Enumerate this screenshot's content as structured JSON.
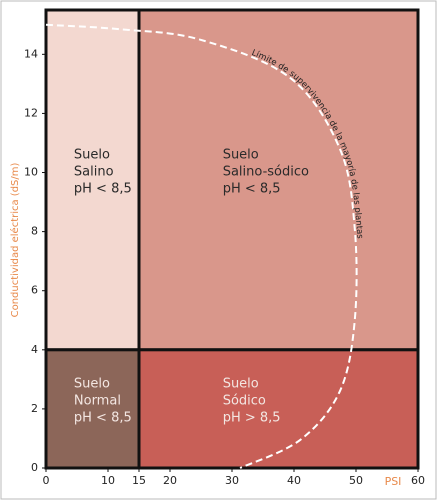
{
  "chart_data": {
    "type": "regions",
    "x_label": "PSI",
    "y_label": "Conductividad eléctrica (dS/m)",
    "xlim": [
      0,
      60
    ],
    "ylim": [
      0,
      15.5
    ],
    "xticks": [
      0,
      10,
      15,
      20,
      30,
      40,
      50,
      60
    ],
    "yticks": [
      0,
      2,
      4,
      6,
      8,
      10,
      12,
      14
    ],
    "regions": [
      {
        "lines": [
          "Suelo",
          "Salino",
          "pH < 8,5"
        ],
        "x0": 0,
        "x1": 15,
        "y0": 4,
        "y1": 15.5,
        "color": "#f3d8d0"
      },
      {
        "lines": [
          "Suelo",
          "Salino-sódico",
          "pH < 8,5"
        ],
        "x0": 15,
        "x1": 60,
        "y0": 4,
        "y1": 15.5,
        "color": "#d9978b"
      },
      {
        "lines": [
          "Suelo",
          "Normal",
          "pH < 8,5"
        ],
        "x0": 0,
        "x1": 15,
        "y0": 0,
        "y1": 4,
        "color": "#8c6659"
      },
      {
        "lines": [
          "Suelo",
          "Sódico",
          "pH > 8,5"
        ],
        "x0": 15,
        "x1": 60,
        "y0": 0,
        "y1": 4,
        "color": "#c85f57"
      }
    ],
    "curve": {
      "name": "Límite de supervivencia de la mayoría de las plantas",
      "color": "#ffffff",
      "x": [
        0,
        11.9,
        24.8,
        39.4,
        47.4,
        49.8,
        49.8,
        47.4,
        41,
        31.3
      ],
      "values": [
        15,
        14.85,
        14.5,
        13.2,
        10.8,
        8.1,
        5.0,
        2.6,
        0.95,
        0
      ]
    }
  }
}
